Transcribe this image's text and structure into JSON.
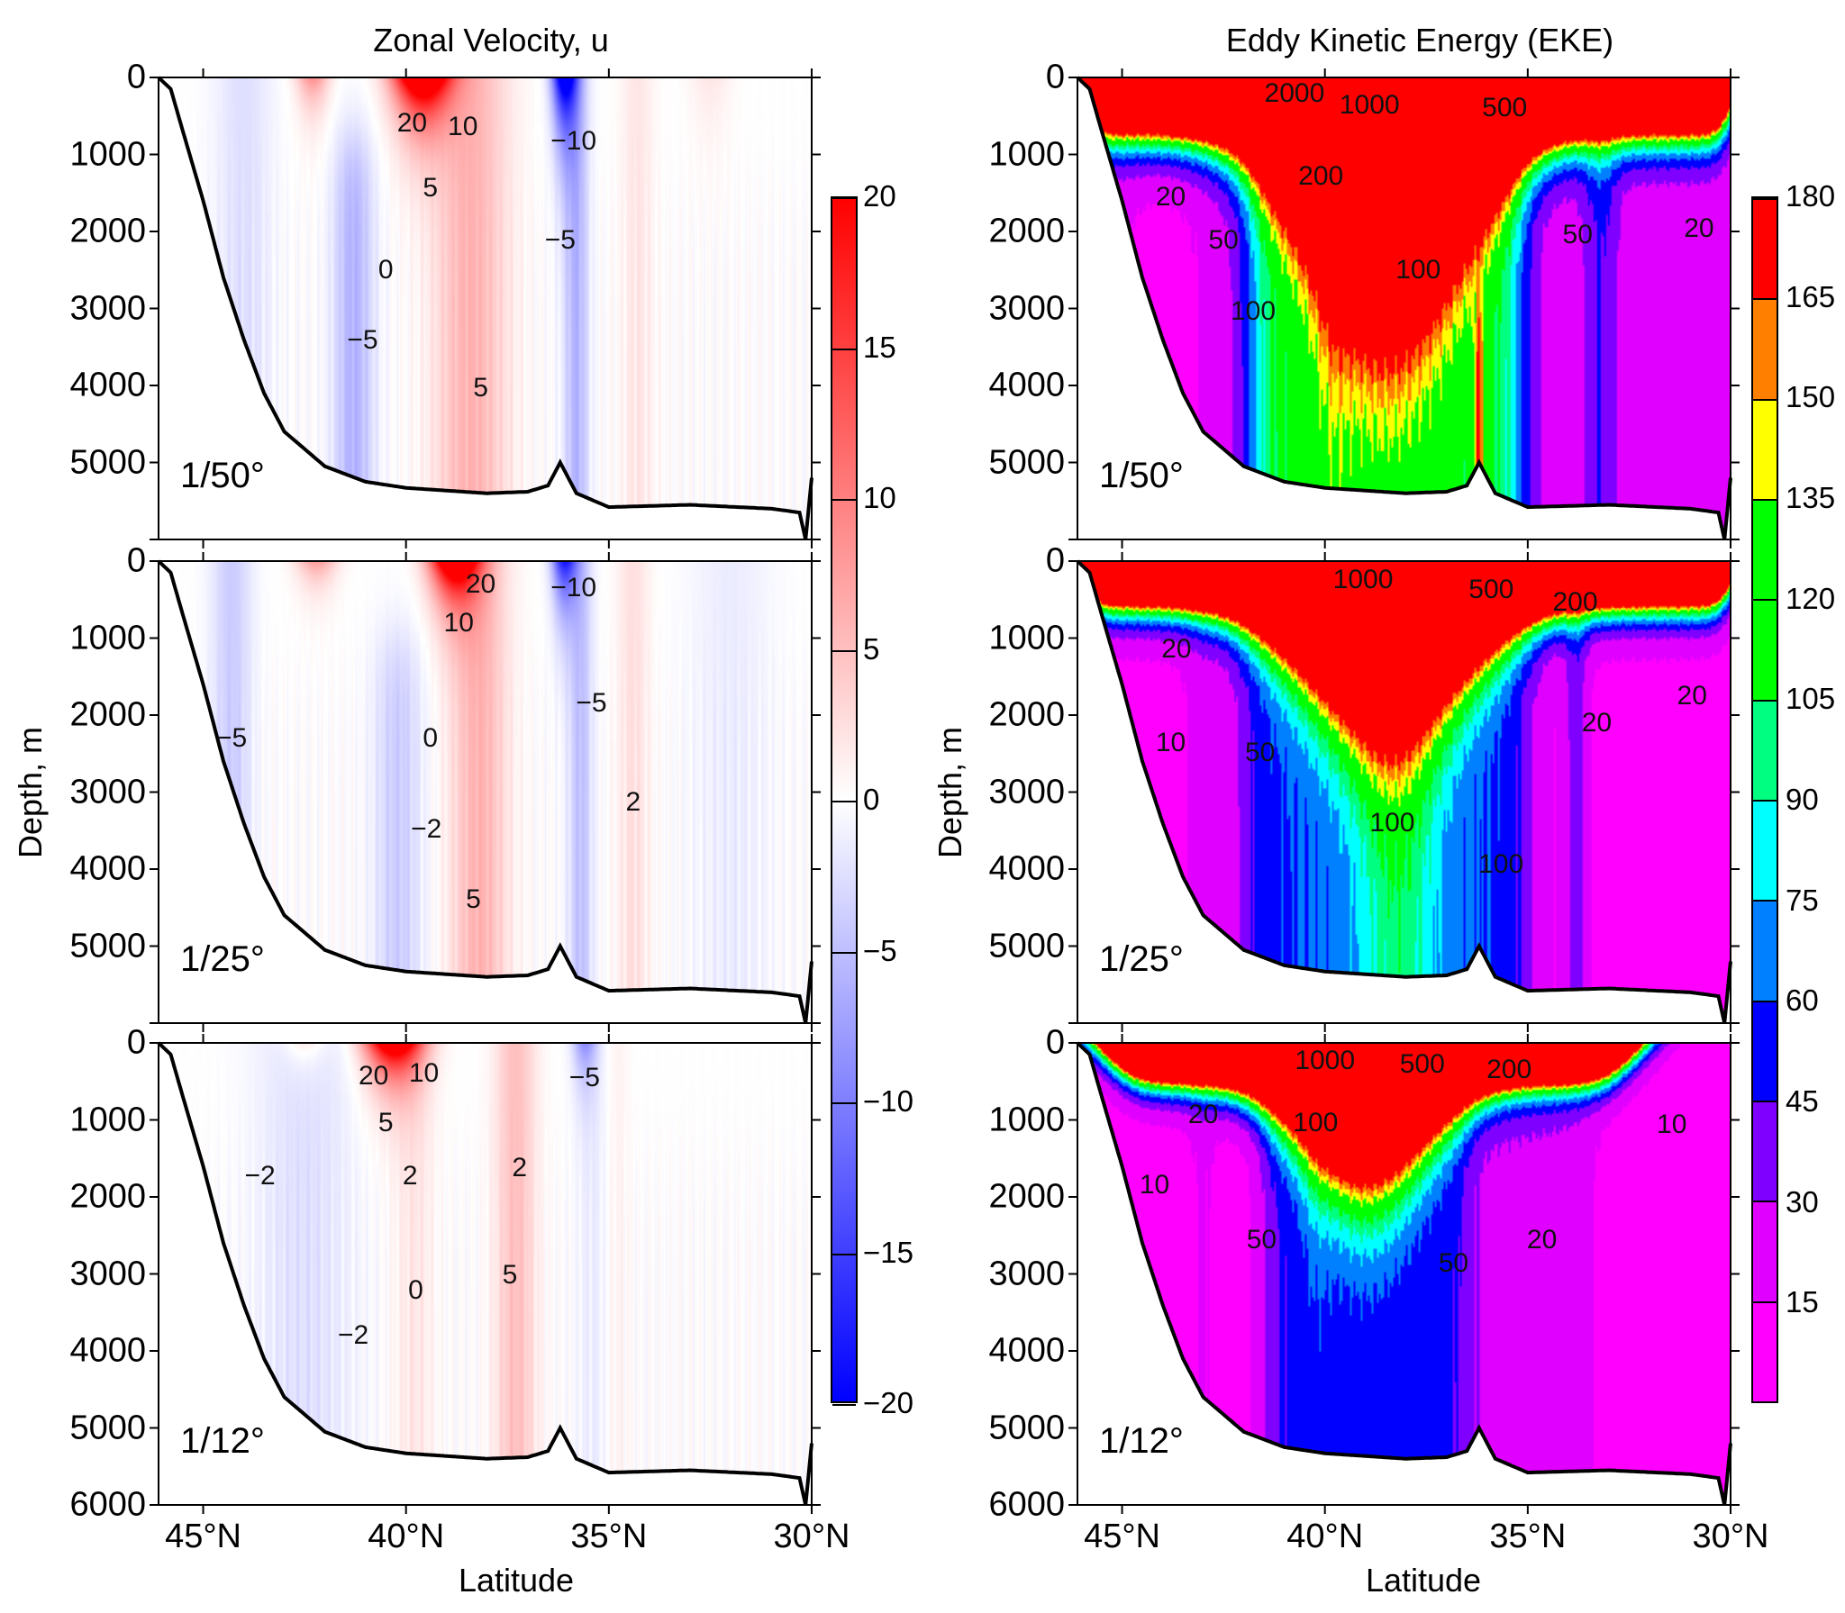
{
  "titles": {
    "left": "Zonal Velocity, u",
    "right": "Eddy Kinetic Energy (EKE)"
  },
  "axes": {
    "ylabel": "Depth, m",
    "xlabel": "Latitude",
    "xlim": [
      46.1,
      30
    ],
    "ylim": [
      0,
      6000
    ],
    "y_ticks": [
      "0",
      "1000",
      "2000",
      "3000",
      "4000",
      "5000"
    ],
    "y_ticks_bottom": [
      "0",
      "1000",
      "2000",
      "3000",
      "4000",
      "5000",
      "6000"
    ],
    "y_tick_values": [
      0,
      1000,
      2000,
      3000,
      4000,
      5000,
      6000
    ],
    "x_ticks": [
      "45°N",
      "40°N",
      "35°N",
      "30°N"
    ],
    "x_tick_values": [
      45,
      40,
      35,
      30
    ]
  },
  "colorbars": {
    "u": {
      "labels": [
        "20",
        "15",
        "10",
        "5",
        "0",
        "−5",
        "−10",
        "−15",
        "−20"
      ],
      "values": [
        20,
        15,
        10,
        5,
        0,
        -5,
        -10,
        -15,
        -20
      ],
      "colors": {
        "positive": "#ff0000",
        "zero": "#ffffff",
        "negative": "#0000ff"
      }
    },
    "eke": {
      "labels": [
        "180",
        "165",
        "150",
        "135",
        "120",
        "105",
        "90",
        "75",
        "60",
        "45",
        "30",
        "15"
      ],
      "values": [
        180,
        165,
        150,
        135,
        120,
        105,
        90,
        75,
        60,
        45,
        30,
        15
      ],
      "colors": [
        "#ff00ff",
        "#e000ff",
        "#8000ff",
        "#0000ff",
        "#0080ff",
        "#00ffff",
        "#00ff80",
        "#00ff00",
        "#00ff00",
        "#ffff00",
        "#ff8000",
        "#ff0000"
      ]
    }
  },
  "chart_data": [
    {
      "type": "heatmap",
      "variable": "u",
      "resolution": "1/50°",
      "colorbar": "u",
      "contour_labels": [
        {
          "text": "20",
          "lat": 39.85,
          "depth": 596
        },
        {
          "text": "10",
          "lat": 38.6,
          "depth": 640
        },
        {
          "text": "−10",
          "lat": 35.87,
          "depth": 825
        },
        {
          "text": "5",
          "lat": 39.4,
          "depth": 1435
        },
        {
          "text": "−5",
          "lat": 36.2,
          "depth": 2120
        },
        {
          "text": "0",
          "lat": 40.5,
          "depth": 2500
        },
        {
          "text": "−5",
          "lat": 41.07,
          "depth": 3420
        },
        {
          "text": "5",
          "lat": 38.16,
          "depth": 4030
        }
      ]
    },
    {
      "type": "heatmap",
      "variable": "u",
      "resolution": "1/25°",
      "colorbar": "u",
      "contour_labels": [
        {
          "text": "20",
          "lat": 38.16,
          "depth": 305
        },
        {
          "text": "−10",
          "lat": 35.87,
          "depth": 350
        },
        {
          "text": "10",
          "lat": 38.7,
          "depth": 810
        },
        {
          "text": "−5",
          "lat": 35.43,
          "depth": 1850
        },
        {
          "text": "−5",
          "lat": 44.3,
          "depth": 2300
        },
        {
          "text": "0",
          "lat": 39.4,
          "depth": 2300
        },
        {
          "text": "−2",
          "lat": 39.5,
          "depth": 3480
        },
        {
          "text": "2",
          "lat": 34.4,
          "depth": 3130
        },
        {
          "text": "5",
          "lat": 38.34,
          "depth": 4400
        }
      ]
    },
    {
      "type": "heatmap",
      "variable": "u",
      "resolution": "1/12°",
      "colorbar": "u",
      "contour_labels": [
        {
          "text": "20",
          "lat": 40.8,
          "depth": 430
        },
        {
          "text": "10",
          "lat": 39.56,
          "depth": 400
        },
        {
          "text": "−5",
          "lat": 35.6,
          "depth": 460
        },
        {
          "text": "5",
          "lat": 40.5,
          "depth": 1040
        },
        {
          "text": "−2",
          "lat": 43.6,
          "depth": 1730
        },
        {
          "text": "2",
          "lat": 39.9,
          "depth": 1730
        },
        {
          "text": "2",
          "lat": 37.2,
          "depth": 1620
        },
        {
          "text": "0",
          "lat": 39.76,
          "depth": 3220
        },
        {
          "text": "5",
          "lat": 37.44,
          "depth": 3020
        },
        {
          "text": "−2",
          "lat": 41.3,
          "depth": 3800
        }
      ]
    },
    {
      "type": "heatmap",
      "variable": "EKE",
      "resolution": "1/50°",
      "colorbar": "eke",
      "contour_labels": [
        {
          "text": "2000",
          "lat": 40.75,
          "depth": 214
        },
        {
          "text": "1000",
          "lat": 38.9,
          "depth": 366
        },
        {
          "text": "500",
          "lat": 35.57,
          "depth": 397
        },
        {
          "text": "200",
          "lat": 40.1,
          "depth": 1283
        },
        {
          "text": "20",
          "lat": 43.8,
          "depth": 1557
        },
        {
          "text": "50",
          "lat": 42.5,
          "depth": 2120
        },
        {
          "text": "100",
          "lat": 37.7,
          "depth": 2500
        },
        {
          "text": "50",
          "lat": 33.77,
          "depth": 2046
        },
        {
          "text": "20",
          "lat": 30.78,
          "depth": 1970
        },
        {
          "text": "100",
          "lat": 41.77,
          "depth": 3040
        }
      ]
    },
    {
      "type": "heatmap",
      "variable": "EKE",
      "resolution": "1/25°",
      "colorbar": "eke",
      "contour_labels": [
        {
          "text": "1000",
          "lat": 39.06,
          "depth": 244
        },
        {
          "text": "500",
          "lat": 35.9,
          "depth": 380
        },
        {
          "text": "200",
          "lat": 33.83,
          "depth": 535
        },
        {
          "text": "20",
          "lat": 43.66,
          "depth": 1145
        },
        {
          "text": "10",
          "lat": 43.8,
          "depth": 2367
        },
        {
          "text": "50",
          "lat": 41.6,
          "depth": 2490
        },
        {
          "text": "20",
          "lat": 33.3,
          "depth": 2107
        },
        {
          "text": "20",
          "lat": 30.95,
          "depth": 1756
        },
        {
          "text": "100",
          "lat": 38.34,
          "depth": 3405
        },
        {
          "text": "100",
          "lat": 35.66,
          "depth": 3940
        }
      ]
    },
    {
      "type": "heatmap",
      "variable": "EKE",
      "resolution": "1/12°",
      "colorbar": "eke",
      "contour_labels": [
        {
          "text": "1000",
          "lat": 40.0,
          "depth": 229
        },
        {
          "text": "500",
          "lat": 37.6,
          "depth": 275
        },
        {
          "text": "200",
          "lat": 35.46,
          "depth": 350
        },
        {
          "text": "20",
          "lat": 43.0,
          "depth": 931
        },
        {
          "text": "100",
          "lat": 40.23,
          "depth": 1038
        },
        {
          "text": "10",
          "lat": 31.45,
          "depth": 1069
        },
        {
          "text": "10",
          "lat": 44.2,
          "depth": 1848
        },
        {
          "text": "20",
          "lat": 34.65,
          "depth": 2565
        },
        {
          "text": "50",
          "lat": 41.56,
          "depth": 2565
        },
        {
          "text": "50",
          "lat": 36.83,
          "depth": 2870
        }
      ]
    }
  ],
  "bathymetry": {
    "lat": [
      46.1,
      45.8,
      45.5,
      45.0,
      44.5,
      44.0,
      43.5,
      43.0,
      42.0,
      41.0,
      40.0,
      38.0,
      37.0,
      36.5,
      36.2,
      35.8,
      35.0,
      33.0,
      31.0,
      30.3,
      30.15,
      30.0
    ],
    "depth": [
      0,
      150,
      700,
      1600,
      2600,
      3400,
      4100,
      4600,
      5050,
      5250,
      5330,
      5400,
      5380,
      5300,
      5000,
      5400,
      5580,
      5550,
      5600,
      5650,
      6000,
      5200
    ]
  }
}
